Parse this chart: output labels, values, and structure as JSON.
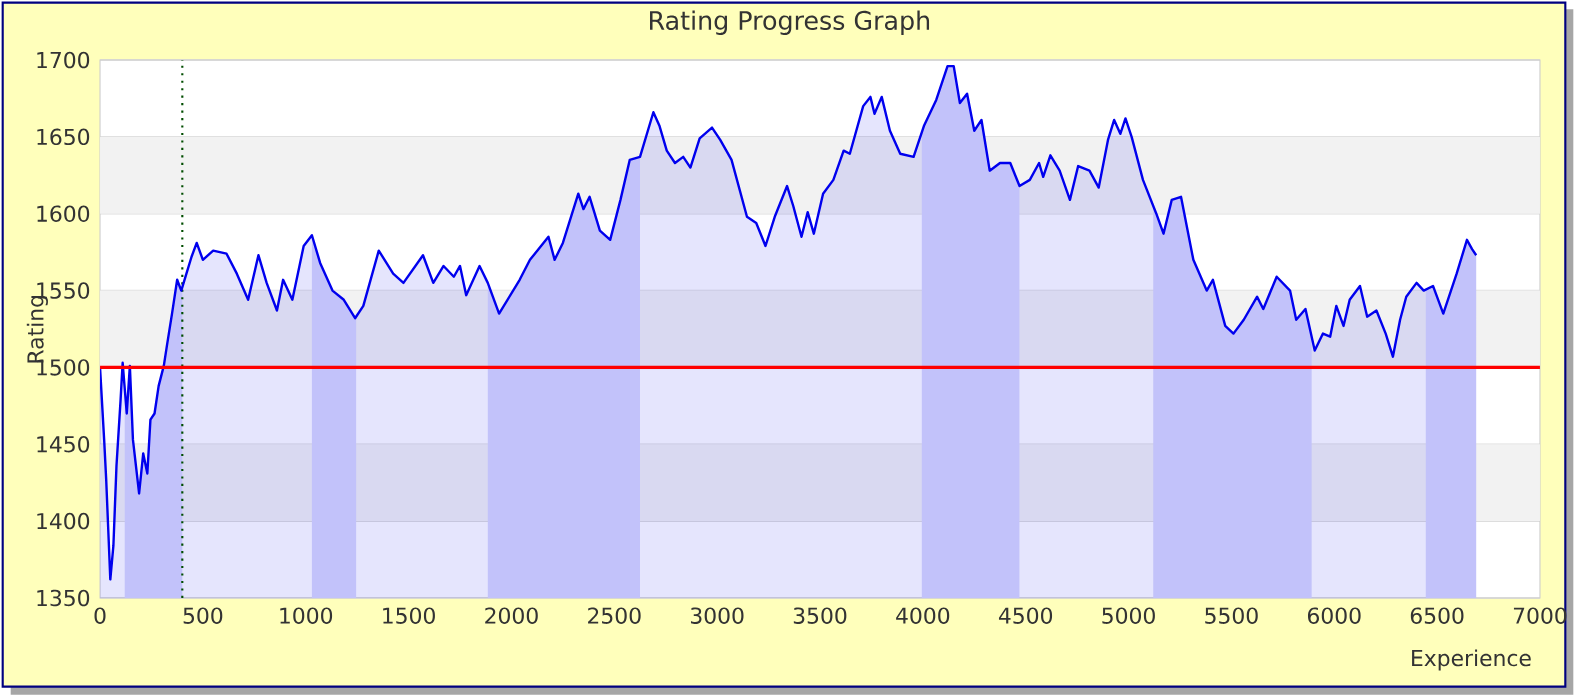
{
  "chart_data": {
    "type": "area",
    "title": "Rating Progress Graph",
    "xlabel": "Experience",
    "ylabel": "Rating",
    "color": "#0000ee",
    "x": [
      0,
      20,
      30,
      50,
      65,
      80,
      100,
      110,
      130,
      145,
      160,
      190,
      210,
      230,
      245,
      265,
      285,
      310,
      325,
      350,
      375,
      395,
      420,
      445,
      470,
      500,
      550,
      615,
      665,
      720,
      770,
      810,
      860,
      890,
      935,
      990,
      1030,
      1070,
      1130,
      1185,
      1240,
      1280,
      1355,
      1425,
      1475,
      1570,
      1620,
      1670,
      1720,
      1750,
      1780,
      1845,
      1885,
      1940,
      2040,
      2090,
      2180,
      2210,
      2250,
      2325,
      2350,
      2380,
      2430,
      2480,
      2530,
      2575,
      2625,
      2690,
      2720,
      2755,
      2795,
      2835,
      2870,
      2915,
      2975,
      3015,
      3070,
      3145,
      3190,
      3235,
      3280,
      3340,
      3370,
      3410,
      3440,
      3470,
      3515,
      3565,
      3615,
      3645,
      3710,
      3745,
      3765,
      3800,
      3840,
      3890,
      3955,
      4005,
      4065,
      4120,
      4150,
      4180,
      4215,
      4250,
      4285,
      4325,
      4375,
      4425,
      4470,
      4520,
      4565,
      4585,
      4620,
      4665,
      4715,
      4755,
      4810,
      4855,
      4900,
      4930,
      4960,
      4985,
      5015,
      5070,
      5135,
      5170,
      5210,
      5255,
      5315,
      5380,
      5410,
      5470,
      5510,
      5560,
      5625,
      5655,
      5720,
      5785,
      5815,
      5860,
      5905,
      5945,
      5980,
      6010,
      6045,
      6075,
      6125,
      6160,
      6205,
      6250,
      6285,
      6320,
      6350,
      6400,
      6435,
      6480,
      6530,
      6595,
      6645,
      6670,
      6690
    ],
    "values": [
      1500,
      1453,
      1427,
      1362,
      1384,
      1436,
      1479,
      1503,
      1470,
      1501,
      1453,
      1418,
      1444,
      1431,
      1466,
      1470,
      1488,
      1501,
      1514,
      1535,
      1557,
      1550,
      1561,
      1572,
      1581,
      1570,
      1576,
      1574,
      1561,
      1544,
      1573,
      1555,
      1537,
      1557,
      1544,
      1579,
      1586,
      1568,
      1550,
      1544,
      1532,
      1540,
      1576,
      1561,
      1555,
      1573,
      1555,
      1566,
      1559,
      1566,
      1547,
      1566,
      1555,
      1535,
      1557,
      1570,
      1585,
      1570,
      1581,
      1613,
      1603,
      1611,
      1589,
      1583,
      1609,
      1635,
      1637,
      1666,
      1657,
      1641,
      1633,
      1637,
      1630,
      1649,
      1656,
      1648,
      1635,
      1598,
      1594,
      1579,
      1598,
      1618,
      1605,
      1585,
      1601,
      1587,
      1613,
      1622,
      1641,
      1639,
      1670,
      1676,
      1665,
      1676,
      1654,
      1639,
      1637,
      1657,
      1674,
      1696,
      1696,
      1672,
      1678,
      1654,
      1661,
      1628,
      1633,
      1633,
      1618,
      1622,
      1633,
      1624,
      1638,
      1628,
      1609,
      1631,
      1628,
      1617,
      1648,
      1661,
      1652,
      1662,
      1650,
      1622,
      1600,
      1587,
      1609,
      1611,
      1570,
      1550,
      1557,
      1527,
      1522,
      1531,
      1546,
      1538,
      1559,
      1550,
      1531,
      1538,
      1511,
      1522,
      1520,
      1540,
      1527,
      1544,
      1553,
      1533,
      1537,
      1522,
      1507,
      1531,
      1546,
      1555,
      1550,
      1553,
      1535,
      1561,
      1583,
      1577,
      1573
    ],
    "xlim": [
      0,
      7000
    ],
    "ylim": [
      1350,
      1700
    ],
    "xticks": [
      0,
      500,
      1000,
      1500,
      2000,
      2500,
      3000,
      3500,
      4000,
      4500,
      5000,
      5500,
      6000,
      6500,
      7000
    ],
    "yticks": [
      1350,
      1400,
      1450,
      1500,
      1550,
      1600,
      1650,
      1700
    ],
    "grid": "y",
    "ref_lines": [
      {
        "axis": "y",
        "value": 1500,
        "color": "#ff0000",
        "line_style": "solid"
      },
      {
        "axis": "x",
        "value": 400,
        "color": "#004d00",
        "line_style": "dotted"
      }
    ],
    "bands": [
      {
        "axis": "x",
        "from": 120,
        "to": 400,
        "color": "#d8d8fc"
      },
      {
        "axis": "x",
        "from": 1030,
        "to": 1245,
        "color": "#d8d8fc"
      },
      {
        "axis": "x",
        "from": 1885,
        "to": 2625,
        "color": "#d8d8fc"
      },
      {
        "axis": "x",
        "from": 3995,
        "to": 4470,
        "color": "#d8d8fc"
      },
      {
        "axis": "x",
        "from": 5120,
        "to": 5890,
        "color": "#d8d8fc"
      },
      {
        "axis": "x",
        "from": 6445,
        "to": 6700,
        "color": "#d8d8fc"
      }
    ]
  }
}
